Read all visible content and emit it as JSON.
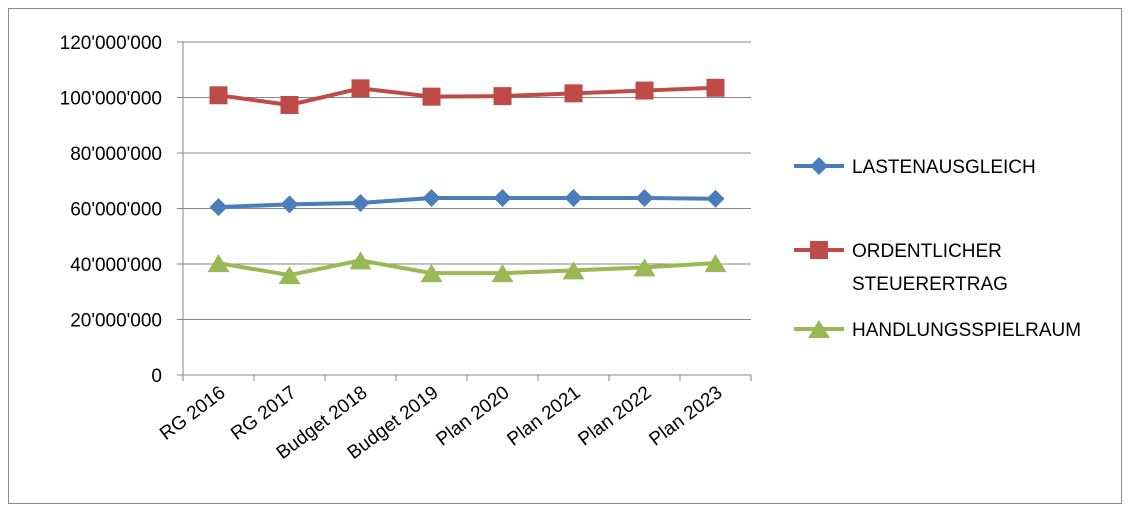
{
  "chart_data": {
    "type": "line",
    "title": "",
    "xlabel": "",
    "ylabel": "",
    "categories": [
      "RG 2016",
      "RG 2017",
      "Budget 2018",
      "Budget 2019",
      "Plan 2020",
      "Plan 2021",
      "Plan 2022",
      "Plan 2023"
    ],
    "ylim": [
      0,
      120000000
    ],
    "y_ticks": [
      0,
      20000000,
      40000000,
      60000000,
      80000000,
      100000000,
      120000000
    ],
    "y_tick_labels": [
      "0",
      "20'000'000",
      "40'000'000",
      "60'000'000",
      "80'000'000",
      "100'000'000",
      "120'000'000"
    ],
    "grid": true,
    "legend_position": "right",
    "series": [
      {
        "name": "LASTENAUSGLEICH",
        "color": "#4a7ebb",
        "marker": "diamond",
        "values": [
          60500000,
          61500000,
          62000000,
          63800000,
          63800000,
          63800000,
          63800000,
          63500000
        ]
      },
      {
        "name": "ORDENTLICHER STEUERERTRAG",
        "legend_lines": [
          "ORDENTLICHER",
          "STEUERERTRAG"
        ],
        "color": "#be4b48",
        "marker": "square",
        "values": [
          100800000,
          97300000,
          103300000,
          100300000,
          100500000,
          101500000,
          102500000,
          103500000
        ]
      },
      {
        "name": "HANDLUNGSSPIELRAUM",
        "color": "#98b954",
        "marker": "triangle",
        "values": [
          40300000,
          36000000,
          41300000,
          36700000,
          36700000,
          37700000,
          38800000,
          40300000
        ]
      }
    ]
  }
}
